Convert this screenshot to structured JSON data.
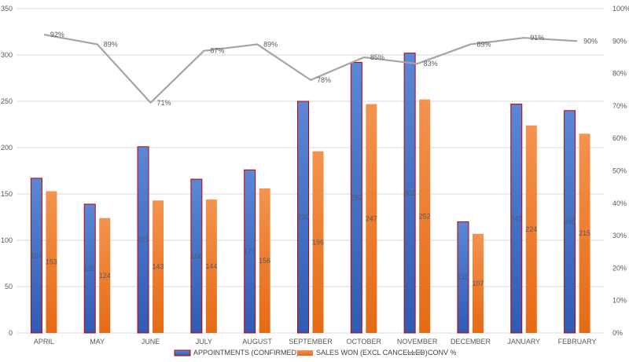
{
  "chart_data": {
    "type": "bar",
    "categories": [
      "APRIL",
      "MAY",
      "JUNE",
      "JULY",
      "AUGUST",
      "SEPTEMBER",
      "OCTOBER",
      "NOVEMBER",
      "DECEMBER",
      "JANUARY",
      "FEBRUARY"
    ],
    "series": [
      {
        "name": "APPOINTMENTS (CONFIRMED)",
        "type": "bar",
        "axis": "left",
        "values": [
          167,
          139,
          201,
          166,
          176,
          250,
          292,
          302,
          120,
          247,
          240
        ],
        "labels": [
          "167",
          "139",
          "201",
          "166",
          "176",
          "250",
          "292",
          "302",
          "120",
          "247",
          "240"
        ],
        "color": "#4472C4",
        "border_color": "#C00000"
      },
      {
        "name": "SALES WON (EXCL CANCELLED)",
        "type": "bar",
        "axis": "left",
        "values": [
          153,
          124,
          143,
          144,
          156,
          196,
          247,
          252,
          107,
          224,
          215
        ],
        "labels": [
          "153",
          "124",
          "143",
          "144",
          "156",
          "196",
          "247",
          "252",
          "107",
          "224",
          "215"
        ],
        "color": "#ED7D31"
      },
      {
        "name": "CONV %",
        "type": "line",
        "axis": "right",
        "values": [
          92,
          89,
          71,
          87,
          89,
          78,
          85,
          83,
          89,
          91,
          90
        ],
        "labels": [
          "92%",
          "89%",
          "71%",
          "87%",
          "89%",
          "78%",
          "85%",
          "83%",
          "89%",
          "91%",
          "90%"
        ],
        "color": "#A5A5A5"
      }
    ],
    "y_left": {
      "ylim": [
        0,
        350
      ],
      "ticks": [
        0,
        50,
        100,
        150,
        200,
        250,
        300,
        350
      ],
      "tick_labels": [
        "0",
        "50",
        "100",
        "150",
        "200",
        "250",
        "300",
        "350"
      ]
    },
    "y_right": {
      "ylim": [
        0,
        100
      ],
      "ticks": [
        0,
        10,
        20,
        30,
        40,
        50,
        60,
        70,
        80,
        90,
        100
      ],
      "tick_labels": [
        "0%",
        "10%",
        "20%",
        "30%",
        "40%",
        "50%",
        "60%",
        "70%",
        "80%",
        "90%",
        "100%"
      ]
    },
    "grid": true,
    "legend_position": "bottom"
  }
}
